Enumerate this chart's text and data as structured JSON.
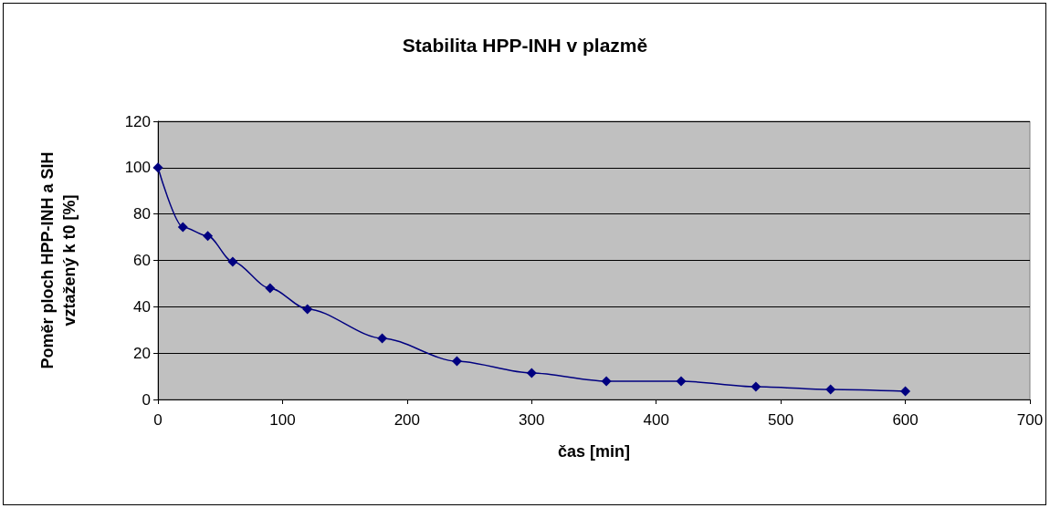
{
  "chart_data": {
    "type": "line",
    "title": "Stabilita HPP-INH v plazmě",
    "xlabel": "čas [min]",
    "ylabel": "Poměr ploch HPP-INH a SIH\nvztažený k t0 [%]",
    "x": [
      0,
      20,
      40,
      60,
      90,
      120,
      180,
      240,
      300,
      360,
      420,
      480,
      540,
      600
    ],
    "series": [
      {
        "color": "#000080",
        "values": [
          100,
          74.4,
          70.5,
          59.4,
          48,
          39,
          26.4,
          16.5,
          11.4,
          7.9,
          7.9,
          5.5,
          4.3,
          3.5
        ]
      }
    ],
    "xlim": [
      0,
      700
    ],
    "xticks": [
      0,
      100,
      200,
      300,
      400,
      500,
      600,
      700
    ],
    "ylim": [
      0,
      120
    ],
    "yticks": [
      0,
      20,
      40,
      60,
      80,
      100,
      120
    ],
    "grid": "y",
    "marker": "diamond",
    "line_style": "solid"
  }
}
